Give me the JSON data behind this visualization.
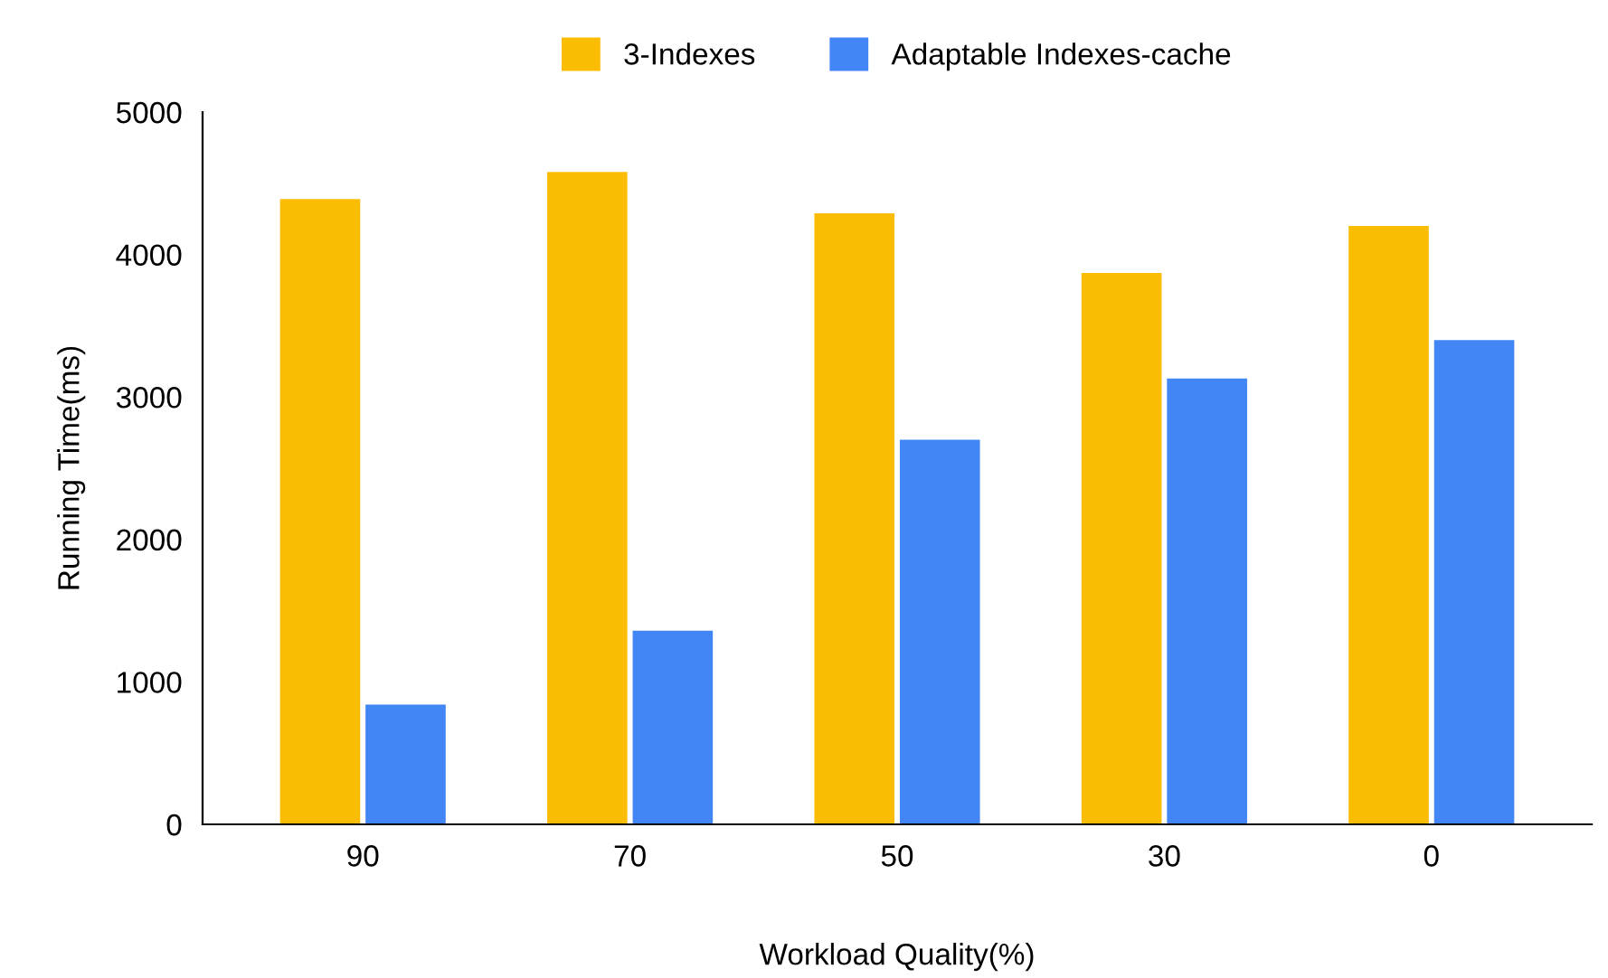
{
  "chart_data": {
    "type": "bar",
    "xlabel": "Workload Quality(%)",
    "ylabel": "Running Time(ms)",
    "categories": [
      "90",
      "70",
      "50",
      "30",
      "0"
    ],
    "series": [
      {
        "name": "3-Indexes",
        "color": "#fbbc04",
        "values": [
          4390,
          4580,
          4290,
          3870,
          4200
        ]
      },
      {
        "name": "Adaptable Indexes-cache",
        "color": "#4285f4",
        "values": [
          840,
          1360,
          2700,
          3130,
          3400
        ]
      }
    ],
    "ylim": [
      0,
      5000
    ],
    "yticks": [
      0,
      1000,
      2000,
      3000,
      4000,
      5000
    ],
    "grid": false,
    "legend": "top"
  }
}
